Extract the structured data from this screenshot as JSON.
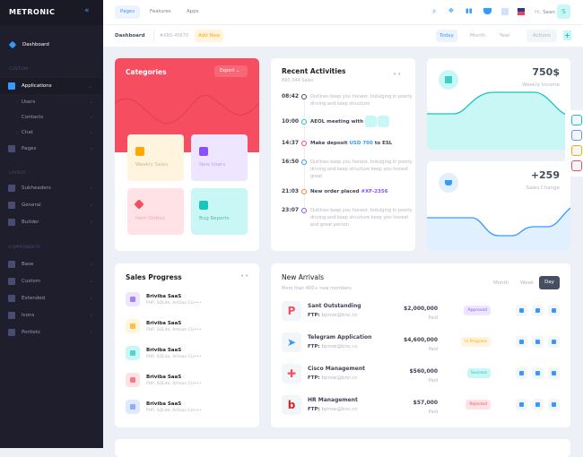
{
  "brand": "METRONIC",
  "sidebar": {
    "dashboard": "Dashboard",
    "sections": [
      "CUSTOM",
      "LAYOUT",
      "COMPONENTS"
    ],
    "items": [
      {
        "label": "Applications",
        "icon": "apps-icon",
        "expanded": true
      },
      {
        "label": "Users",
        "sub": true
      },
      {
        "label": "Contacts",
        "sub": true
      },
      {
        "label": "Chat",
        "sub": true
      },
      {
        "label": "Pages",
        "icon": "pages-icon"
      },
      {
        "label": "Subheaders",
        "icon": "subheaders-icon"
      },
      {
        "label": "General",
        "icon": "general-icon"
      },
      {
        "label": "Builder",
        "icon": "builder-icon"
      },
      {
        "label": "Base",
        "icon": "base-icon"
      },
      {
        "label": "Custom",
        "icon": "custom-icon"
      },
      {
        "label": "Extended",
        "icon": "extended-icon"
      },
      {
        "label": "Icons",
        "icon": "icons-icon"
      },
      {
        "label": "Portlets",
        "icon": "portlets-icon"
      }
    ]
  },
  "header": {
    "nav": [
      "Pages",
      "Features",
      "Apps"
    ],
    "greeting": "Hi,",
    "user": "Sean",
    "avatar": "S"
  },
  "subheader": {
    "title": "Dashboard",
    "code": "#XRS-45670",
    "add_new": "Add New",
    "periods": [
      "Today",
      "Month",
      "Year"
    ],
    "actions": "Actions"
  },
  "categories": {
    "title": "Categories",
    "export": "Export",
    "tiles": [
      "Weekly Sales",
      "New Users",
      "Item Orders",
      "Bug Reports"
    ]
  },
  "activities": {
    "title": "Recent Activities",
    "subtitle": "890,344 Sales",
    "items": [
      {
        "time": "08:42",
        "text": "Outlines keep you honest. Indulging in poorly driving and keep structure",
        "color": "#6c3a6e"
      },
      {
        "time": "10:00",
        "text": "AEOL meeting with",
        "color": "#1bc5bd"
      },
      {
        "time": "14:37",
        "pre": "Make deposit ",
        "hl": "USD 700",
        "post": " to ESL",
        "color": "#f64e60"
      },
      {
        "time": "16:50",
        "text": "Outlines keep you honest. Indulging in poorly driving and keep structure keep you honest great",
        "color": "#3699ff"
      },
      {
        "time": "21:03",
        "pre": "New order placed ",
        "hl": "#XF-2356",
        "post": "",
        "color": "#ff7f38"
      },
      {
        "time": "23:07",
        "text": "Outlines keep you honest. Indulging in poorly driving and keep structure keep you honest and great person",
        "color": "#8950fc"
      }
    ]
  },
  "stats": [
    {
      "value": "750$",
      "label": "Weekly Income"
    },
    {
      "value": "+259",
      "label": "Sales Change"
    }
  ],
  "sales_progress": {
    "title": "Sales Progress",
    "items": [
      {
        "name": "Briviba SaaS",
        "desc": "PHP, SQLite, Artisan CLI•••",
        "bg": "#eee5ff",
        "fg": "#8950fc"
      },
      {
        "name": "Briviba SaaS",
        "desc": "PHP, SQLite, Artisan CLI•••",
        "bg": "#fff4de",
        "fg": "#ffa800"
      },
      {
        "name": "Briviba SaaS",
        "desc": "PHP, SQLite, Artisan CLI•••",
        "bg": "#c9f7f5",
        "fg": "#1bc5bd"
      },
      {
        "name": "Briviba SaaS",
        "desc": "PHP, SQLite, Artisan CLI•••",
        "bg": "#ffe2e5",
        "fg": "#f64e60"
      },
      {
        "name": "Briviba SaaS",
        "desc": "PHP, SQLite, Artisan CLI•••",
        "bg": "#e1e9ff",
        "fg": "#6993ff"
      }
    ]
  },
  "arrivals": {
    "title": "New Arrivals",
    "subtitle": "More than 400+ new members",
    "tabs": [
      "Month",
      "Week",
      "Day"
    ],
    "ftp_label": "FTP:",
    "rows": [
      {
        "name": "Sant Outstanding",
        "ftp": "bprow@bnc.cc",
        "amount": "$2,000,000",
        "paid": "Paid",
        "status": "Approved",
        "sbg": "#eee5ff",
        "sfg": "#8950fc",
        "logo": "P",
        "lc": "#f64e60"
      },
      {
        "name": "Telegram Application",
        "ftp": "bprow@bnc.cc",
        "amount": "$4,600,000",
        "paid": "Paid",
        "status": "In Progress",
        "sbg": "#fff4de",
        "sfg": "#ffa800",
        "logo": "➤",
        "lc": "#3699ff"
      },
      {
        "name": "Cisco Management",
        "ftp": "bprow@bnc.cc",
        "amount": "$560,000",
        "paid": "Paid",
        "status": "Success",
        "sbg": "#c9f7f5",
        "sfg": "#1bc5bd",
        "logo": "✚",
        "lc": "#f64e60"
      },
      {
        "name": "HR Management",
        "ftp": "bprow@bnc.cc",
        "amount": "$57,000",
        "paid": "Paid",
        "status": "Rejected",
        "sbg": "#ffe2e5",
        "sfg": "#f64e60",
        "logo": "b",
        "lc": "#e02020"
      }
    ]
  }
}
